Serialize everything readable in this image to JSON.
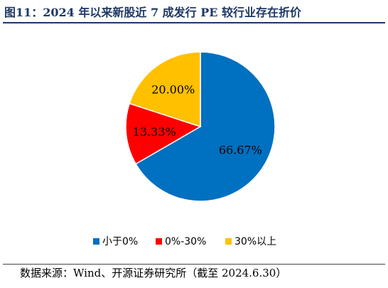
{
  "header": {
    "title": "图11：2024 年以来新股近 7 成发行 PE 较行业存在折价"
  },
  "chart_data": {
    "type": "pie",
    "categories": [
      "小于0%",
      "0%-30%",
      "30%以上"
    ],
    "values": [
      66.67,
      13.33,
      20.0
    ],
    "data_labels": [
      "66.67%",
      "13.33%",
      "20.00%"
    ],
    "colors": [
      "#0070c0",
      "#ff0000",
      "#ffc000"
    ],
    "legend_position": "bottom"
  },
  "footer": {
    "source": "数据来源：Wind、开源证券研究所（截至 2024.6.30）"
  }
}
